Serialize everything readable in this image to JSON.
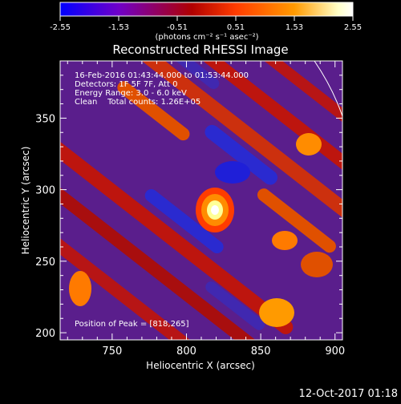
{
  "colorbar": {
    "ticks": [
      "-2.55",
      "-1.53",
      "-0.51",
      "0.51",
      "1.53",
      "2.55"
    ],
    "unit_label": "(photons cm⁻² s⁻¹ asec⁻²)",
    "colors": [
      "#0000ff",
      "#7000c8",
      "#c00000",
      "#ff3c00",
      "#ff9a00",
      "#ffffc8",
      "#ffffff"
    ]
  },
  "chart_data": {
    "type": "heatmap",
    "title": "Reconstructed RHESSI Image",
    "xlabel": "Heliocentric X (arcsec)",
    "ylabel": "Heliocentric Y (arcsec)",
    "xlim": [
      715,
      905
    ],
    "ylim": [
      195,
      390
    ],
    "xticks": [
      750,
      800,
      850,
      900
    ],
    "yticks": [
      200,
      250,
      300,
      350
    ],
    "vrange": [
      -2.55,
      2.55
    ],
    "peak_position": [
      818,
      265
    ],
    "annotations": [
      "16-Feb-2016 01:43:44.000 to 01:53:44.000",
      "Detectors: 1F 5F 7F, Att 0",
      "Energy Range: 3.0 - 6.0 keV",
      "Clean    Total counts: 1.26E+05"
    ],
    "peak_label": "Position of Peak = [818,265]"
  },
  "footer": {
    "timestamp": "12-Oct-2017 01:18"
  }
}
